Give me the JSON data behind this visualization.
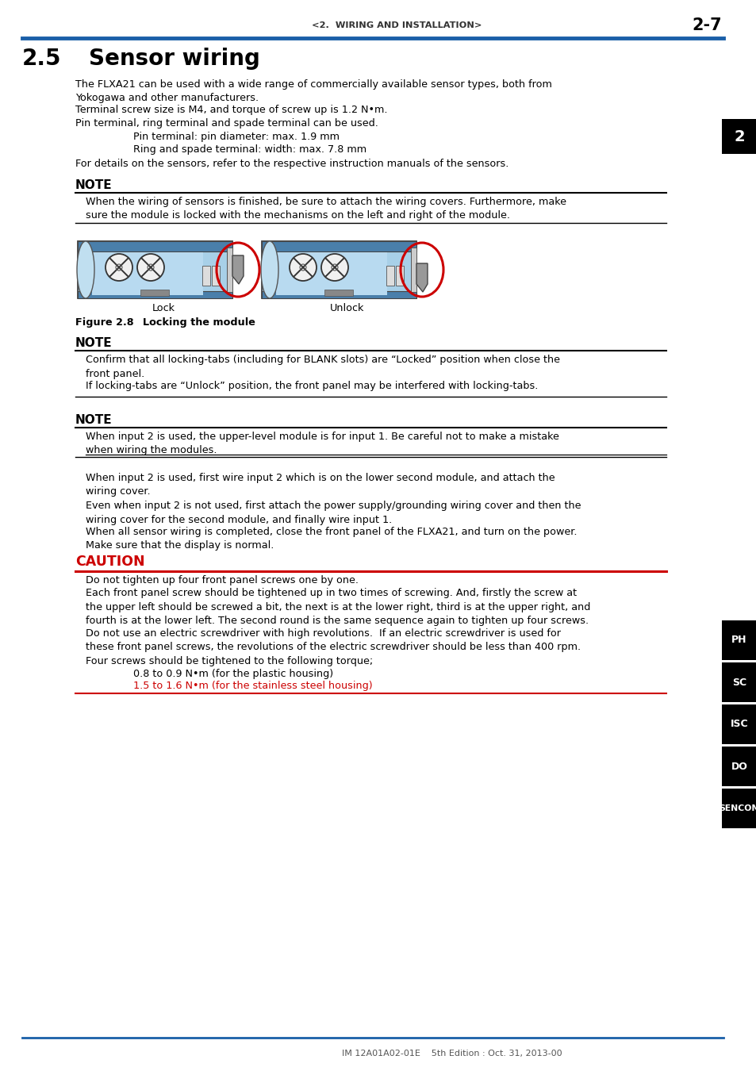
{
  "header_text": "<2.  WIRING AND INSTALLATION>",
  "header_page": "2-7",
  "header_line_color": "#1a5fa8",
  "section_number": "2.5",
  "section_title": "Sensor wiring",
  "body_paragraphs": [
    "The FLXA21 can be used with a wide range of commercially available sensor types, both from\nYokogawa and other manufacturers.",
    "Terminal screw size is M4, and torque of screw up is 1.2 N•m.",
    "Pin terminal, ring terminal and spade terminal can be used."
  ],
  "indented_lines": [
    "Pin terminal: pin diameter: max. 1.9 mm",
    "Ring and spade terminal: width: max. 7.8 mm"
  ],
  "last_para": "For details on the sensors, refer to the respective instruction manuals of the sensors.",
  "note1_title": "NOTE",
  "note1_text": "When the wiring of sensors is finished, be sure to attach the wiring covers. Furthermore, make\nsure the module is locked with the mechanisms on the left and right of the module.",
  "fig_caption_label": "Figure 2.8",
  "fig_caption_text": "Locking the module",
  "note2_title": "NOTE",
  "note2_text1": "Confirm that all locking-tabs (including for BLANK slots) are “Locked” position when close the\nfront panel.",
  "note2_text2": "If locking-tabs are “Unlock” position, the front panel may be interfered with locking-tabs.",
  "note3_title": "NOTE",
  "note3_text1": "When input 2 is used, the upper-level module is for input 1. Be careful not to make a mistake\nwhen wiring the modules.",
  "para2_1": "When input 2 is used, first wire input 2 which is on the lower second module, and attach the\nwiring cover.\nEven when input 2 is not used, first attach the power supply/grounding wiring cover and then the\nwiring cover for the second module, and finally wire input 1.",
  "para2_2": "When all sensor wiring is completed, close the front panel of the FLXA21, and turn on the power.\nMake sure that the display is normal.",
  "caution_title": "CAUTION",
  "caution_title_color": "#cc0000",
  "caution_line_color": "#cc0000",
  "caution_text1": "Do not tighten up four front panel screws one by one.",
  "caution_text2": "Each front panel screw should be tightened up in two times of screwing. And, firstly the screw at\nthe upper left should be screwed a bit, the next is at the lower right, third is at the upper right, and\nfourth is at the lower left. The second round is the same sequence again to tighten up four screws.",
  "caution_text3": "Do not use an electric screwdriver with high revolutions.  If an electric screwdriver is used for\nthese front panel screws, the revolutions of the electric screwdriver should be less than 400 rpm.",
  "caution_text4": "Four screws should be tightened to the following torque;",
  "caution_indent1": "0.8 to 0.9 N•m (for the plastic housing)",
  "caution_indent2": "1.5 to 1.6 N•m (for the stainless steel housing)",
  "footer_text": "IM 12A01A02-01E    5th Edition : Oct. 31, 2013-00",
  "footer_line_color": "#1a5fa8",
  "sidebar_items": [
    "PH",
    "SC",
    "ISC",
    "DO",
    "SENCOM"
  ],
  "sidebar_color": "#000000",
  "sidebar_text_color": "#ffffff",
  "page_tab": "2",
  "page_tab_color": "#000000",
  "page_tab_text_color": "#ffffff",
  "bg_color": "#ffffff"
}
